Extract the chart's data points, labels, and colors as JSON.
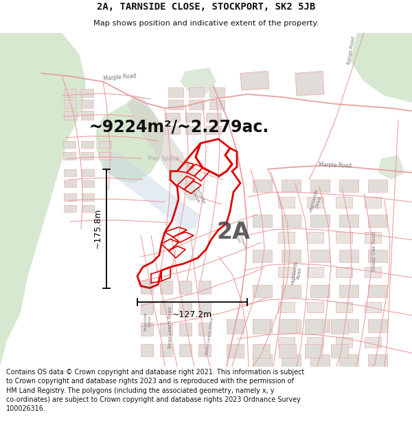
{
  "title_line1": "2A, TARNSIDE CLOSE, STOCKPORT, SK2 5JB",
  "title_line2": "Map shows position and indicative extent of the property.",
  "area_label": "~9224m²/~2.279ac.",
  "label_2A": "2A",
  "dim_vertical": "~175.8m",
  "dim_horizontal": "~127.2m",
  "footer_text": "Contains OS data © Crown copyright and database right 2021. This information is subject\nto Crown copyright and database rights 2023 and is reproduced with the permission of\nHM Land Registry. The polygons (including the associated geometry, namely x, y\nco-ordinates) are subject to Crown copyright and database rights 2023 Ordnance Survey\n100026316.",
  "map_bg": "#f5f3f0",
  "road_color": "#e8a0a0",
  "road_color_dark": "#d07070",
  "highlight_color": "#dd0000",
  "green_area1": "#d6e8d0",
  "green_area2": "#c8dfc4",
  "gray_block": "#e0ddd8",
  "path_color": "#ccd8e8",
  "title_bg": "#ffffff",
  "footer_bg": "#ffffff",
  "dim_line_color": "#000000",
  "area_text_color": "#111111",
  "label_color": "#444444",
  "road_label_color": "#777777"
}
